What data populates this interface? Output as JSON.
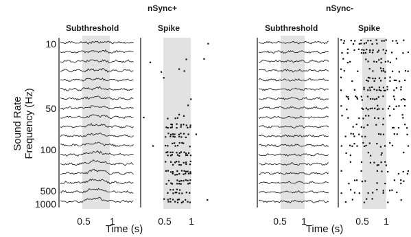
{
  "figure": {
    "conditions": [
      {
        "title": "nSync+",
        "panels": {
          "subthreshold": "Subthreshold",
          "spike": "Spike"
        },
        "spike_seed": 7,
        "spike_density_in_stimulus": [
          0.05,
          0.08,
          0.05,
          0.05,
          0.1,
          0.05,
          0.04,
          0.1,
          0.3,
          0.75,
          0.85,
          0.9,
          0.95,
          0.97,
          0.97,
          1.0,
          1.0,
          1.0
        ]
      },
      {
        "title": "nSync-",
        "panels": {
          "subthreshold": "Subthreshold",
          "spike": "Spike"
        },
        "spike_seed": 31,
        "spike_density_in_stimulus": [
          0.85,
          0.82,
          0.8,
          0.75,
          0.72,
          0.7,
          0.65,
          0.62,
          0.58,
          0.5,
          0.45,
          0.45,
          0.4,
          0.4,
          0.35,
          0.35,
          0.3,
          0.3
        ]
      }
    ],
    "y_axis": {
      "label_line1": "Sound Rate",
      "label_line2": "Frequency (Hz)",
      "tick_labels": [
        "10",
        "50",
        "100",
        "500",
        "1000"
      ]
    },
    "x_axis": {
      "label": "Time (s)",
      "tick_labels": [
        "0.5",
        "1"
      ]
    },
    "trace_count": 18,
    "stimulus_shading_color": "#e2e2e2",
    "trace_color": "#222222"
  }
}
